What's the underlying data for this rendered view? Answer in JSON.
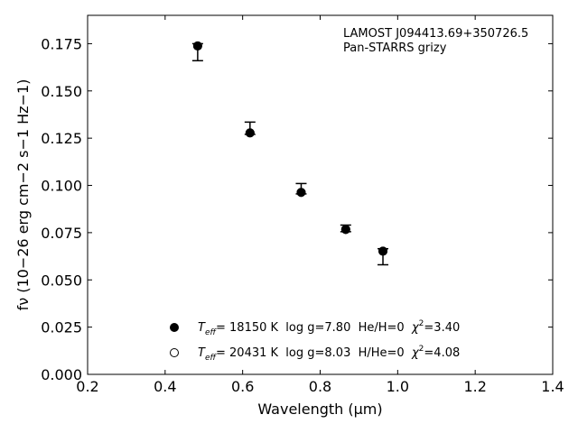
{
  "chart_data": {
    "type": "scatter",
    "xlabel": "Wavelength (μm)",
    "ylabel": "fν (10−26 erg cm−2 s−1 Hz−1)",
    "xlim": [
      0.2,
      1.4
    ],
    "ylim": [
      0.0,
      0.19
    ],
    "x_ticks": [
      "0.2",
      "0.4",
      "0.6",
      "0.8",
      "1.0",
      "1.2",
      "1.4"
    ],
    "y_ticks": [
      "0.000",
      "0.025",
      "0.050",
      "0.075",
      "0.100",
      "0.125",
      "0.150",
      "0.175"
    ],
    "annotation_lines": [
      "LAMOST J094413.69+350726.5",
      "Pan-STARRS grizy"
    ],
    "observed": {
      "x": [
        0.484,
        0.619,
        0.751,
        0.866,
        0.962
      ],
      "y_upper": [
        0.175,
        0.1335,
        0.101,
        0.079,
        0.0665
      ],
      "y_lower": [
        0.166,
        0.127,
        0.0955,
        0.0755,
        0.058
      ]
    },
    "series": [
      {
        "marker": "filled",
        "x": [
          0.484,
          0.619,
          0.751,
          0.866,
          0.962
        ],
        "y": [
          0.1738,
          0.1278,
          0.0963,
          0.0767,
          0.0652
        ],
        "legend": {
          "teff_symbol": "T",
          "teff_sub": "eff",
          "teff_rest": "= 18150 K  log g=7.80  He/H=0  ",
          "chi_symbol": "χ",
          "chi_sup": "2",
          "chi_rest": "=3.40"
        }
      },
      {
        "marker": "open",
        "x": [
          0.484,
          0.619,
          0.751,
          0.866,
          0.962
        ],
        "y": [
          0.1738,
          0.1278,
          0.0963,
          0.0767,
          0.0652
        ],
        "legend": {
          "teff_symbol": "T",
          "teff_sub": "eff",
          "teff_rest": "= 20431 K  log g=8.03  H/He=0  ",
          "chi_symbol": "χ",
          "chi_sup": "2",
          "chi_rest": "=4.08"
        }
      }
    ],
    "legend_position": "lower-left",
    "grid": false
  }
}
